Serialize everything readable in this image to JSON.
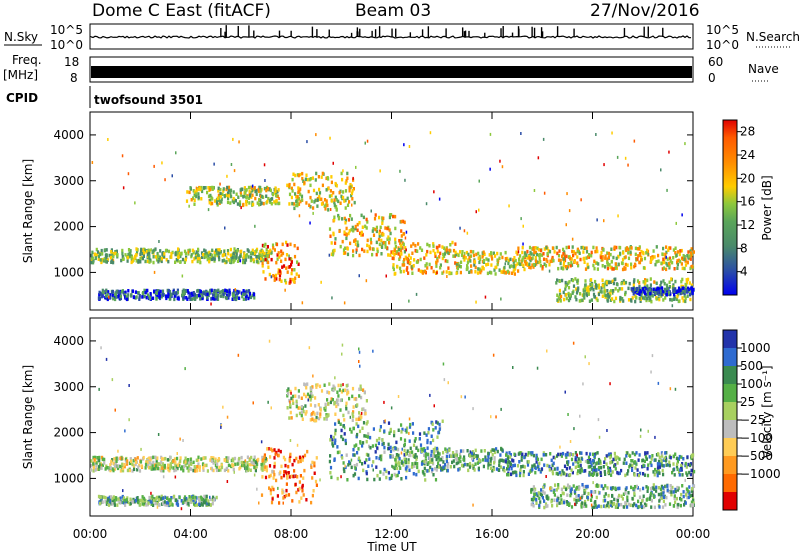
{
  "header": {
    "station": "Dome C East (fitACF)",
    "beam": "Beam 03",
    "date": "27/Nov/2016"
  },
  "summary_panels": {
    "nsky_label": "N.Sky",
    "nsky_ticks": [
      "10^5",
      "10^0"
    ],
    "nsearch_label": "N.Search",
    "nsearch_ticks": [
      "10^5",
      "10^0"
    ],
    "freq_label": "Freq.",
    "freq_unit": "[MHz]",
    "freq_ticks": [
      "18",
      "8"
    ],
    "nave_label": "Nave",
    "nave_ticks": [
      "60",
      "0"
    ],
    "cpid_label": "CPID",
    "cpid_value": "twofsound 3501"
  },
  "colors": {
    "power_scale": [
      "#0000ee",
      "#2b4ea6",
      "#4a8a6a",
      "#5aa55a",
      "#8cc83c",
      "#ffcc00",
      "#ff8c00",
      "#ff5a00",
      "#e00000"
    ],
    "velocity_scale": [
      "#2233aa",
      "#2f6bd0",
      "#3a8a50",
      "#55b046",
      "#a8d060",
      "#bdbdbd",
      "#ffcc55",
      "#ff9a20",
      "#ff6a00",
      "#e00000"
    ]
  },
  "chart_data": [
    {
      "type": "heatmap",
      "title": "",
      "xlabel": "Time UT",
      "ylabel": "Slant Range [km]",
      "x_ticks": [
        "00:00",
        "04:00",
        "08:00",
        "12:00",
        "16:00",
        "20:00",
        "00:00"
      ],
      "xlim_hours": [
        0,
        24
      ],
      "y_ticks": [
        "1000",
        "2000",
        "3000",
        "4000"
      ],
      "ylim": [
        180,
        4500
      ],
      "colorbar": {
        "label": "Power [dB]",
        "ticks": [
          "4",
          "8",
          "12",
          "16",
          "20",
          "24",
          "28"
        ],
        "range": [
          0,
          30
        ]
      },
      "regions": [
        {
          "t0": 0.0,
          "t1": 7.2,
          "r0": 1250,
          "r1": 1550,
          "level": 0.45
        },
        {
          "t0": 0.3,
          "t1": 6.5,
          "r0": 450,
          "r1": 650,
          "level": 0.2
        },
        {
          "t0": 3.8,
          "t1": 7.5,
          "r0": 2500,
          "r1": 2900,
          "level": 0.5
        },
        {
          "t0": 6.8,
          "t1": 8.3,
          "r0": 800,
          "r1": 1700,
          "level": 0.75
        },
        {
          "t0": 7.8,
          "t1": 10.5,
          "r0": 2400,
          "r1": 3200,
          "level": 0.55
        },
        {
          "t0": 9.5,
          "t1": 12.5,
          "r0": 1400,
          "r1": 2300,
          "level": 0.6
        },
        {
          "t0": 12.0,
          "t1": 14.5,
          "r0": 1000,
          "r1": 1700,
          "level": 0.65
        },
        {
          "t0": 14.5,
          "t1": 17.0,
          "r0": 1000,
          "r1": 1500,
          "level": 0.55
        },
        {
          "t0": 17.0,
          "t1": 24.0,
          "r0": 1100,
          "r1": 1600,
          "level": 0.6
        },
        {
          "t0": 18.5,
          "t1": 24.0,
          "r0": 400,
          "r1": 900,
          "level": 0.45
        },
        {
          "t0": 21.5,
          "t1": 24.0,
          "r0": 550,
          "r1": 700,
          "level": 0.15
        }
      ]
    },
    {
      "type": "heatmap",
      "title": "",
      "xlabel": "Time UT",
      "ylabel": "Slant Range [km]",
      "x_ticks": [
        "00:00",
        "04:00",
        "08:00",
        "12:00",
        "16:00",
        "20:00",
        "00:00"
      ],
      "xlim_hours": [
        0,
        24
      ],
      "y_ticks": [
        "1000",
        "2000",
        "3000",
        "4000"
      ],
      "ylim": [
        180,
        4500
      ],
      "colorbar": {
        "label": "Velocity [m s⁻¹]",
        "ticks": [
          "1000",
          "500",
          "100",
          "25",
          "−25",
          "−100",
          "−500",
          "−1000"
        ]
      },
      "regions": [
        {
          "t0": 0.0,
          "t1": 7.0,
          "r0": 1200,
          "r1": 1500,
          "level": 0.5
        },
        {
          "t0": 0.3,
          "t1": 5.0,
          "r0": 450,
          "r1": 650,
          "level": 0.35
        },
        {
          "t0": 6.8,
          "t1": 9.0,
          "r0": 500,
          "r1": 1700,
          "level": 0.8
        },
        {
          "t0": 7.8,
          "t1": 11.0,
          "r0": 2300,
          "r1": 3100,
          "level": 0.5
        },
        {
          "t0": 9.5,
          "t1": 14.0,
          "r0": 1000,
          "r1": 2300,
          "level": 0.3
        },
        {
          "t0": 12.0,
          "t1": 16.5,
          "r0": 1200,
          "r1": 1700,
          "level": 0.35
        },
        {
          "t0": 16.5,
          "t1": 24.0,
          "r0": 1100,
          "r1": 1600,
          "level": 0.25
        },
        {
          "t0": 17.5,
          "t1": 24.0,
          "r0": 400,
          "r1": 900,
          "level": 0.35
        }
      ]
    }
  ]
}
